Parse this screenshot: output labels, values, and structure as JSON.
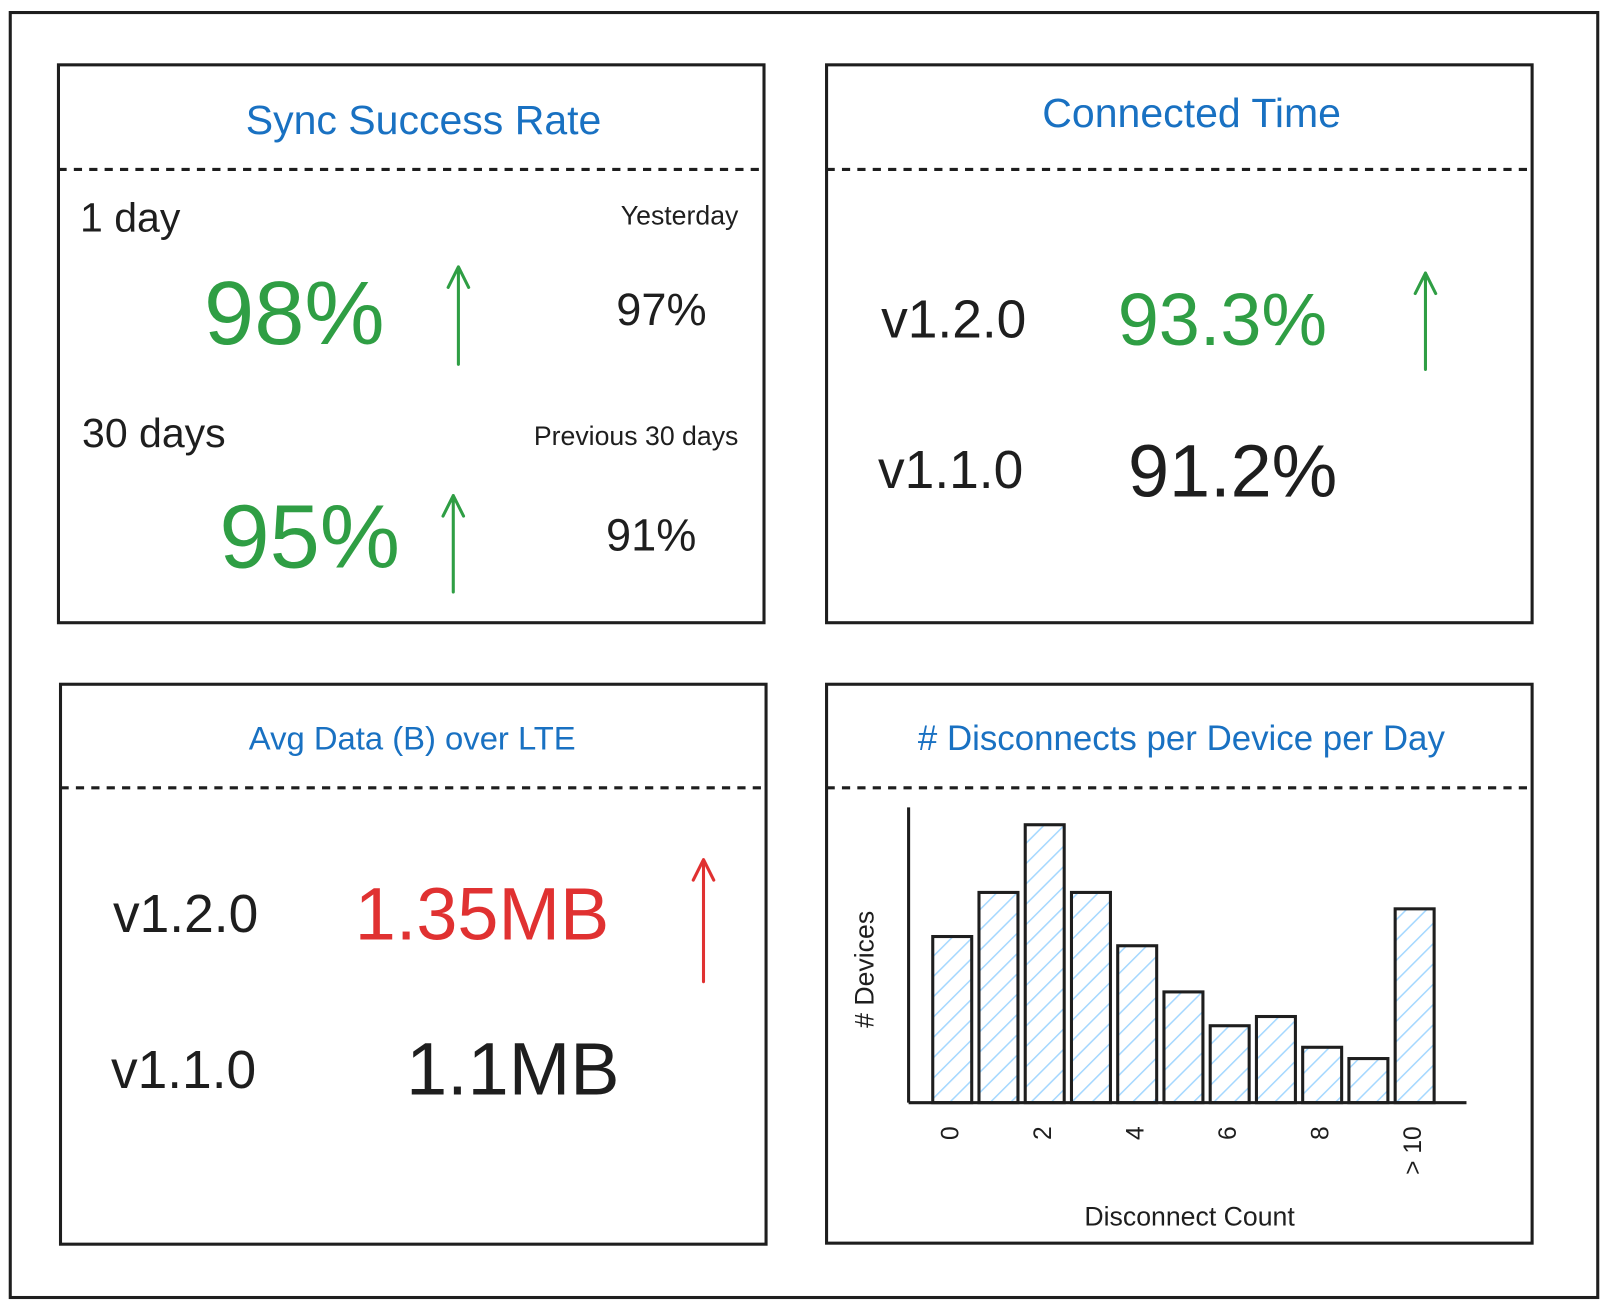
{
  "sync": {
    "title": "Sync Success Rate",
    "day": {
      "label": "1 day",
      "value": "98%",
      "compare_label": "Yesterday",
      "compare_value": "97%"
    },
    "month": {
      "label": "30 days",
      "value": "95%",
      "compare_label": "Previous 30 days",
      "compare_value": "91%"
    }
  },
  "connected": {
    "title": "Connected Time",
    "rows": [
      {
        "version": "v1.2.0",
        "value": "93.3%"
      },
      {
        "version": "v1.1.0",
        "value": "91.2%"
      }
    ]
  },
  "data_usage": {
    "title": "Avg Data (B) over LTE",
    "rows": [
      {
        "version": "v1.2.0",
        "value": "1.35MB"
      },
      {
        "version": "v1.1.0",
        "value": "1.1MB"
      }
    ]
  },
  "chart_data": {
    "type": "bar",
    "title": "# Disconnects per Device per Day",
    "x_label": "Disconnect Count",
    "y_label": "# Devices",
    "categories": [
      "0",
      null,
      "2",
      null,
      "4",
      null,
      "6",
      null,
      "8",
      null,
      "> 10"
    ],
    "values": [
      162,
      205,
      271,
      205,
      153,
      108,
      75,
      84,
      54,
      43,
      189
    ],
    "color": "#a5d8ff",
    "ylim": [
      0,
      288
    ]
  }
}
